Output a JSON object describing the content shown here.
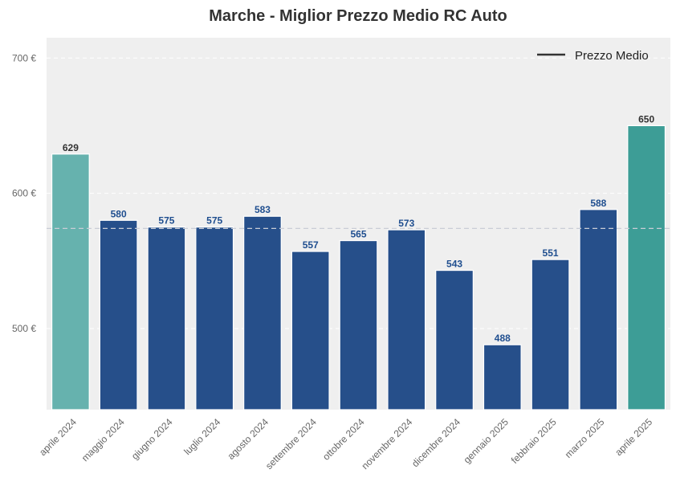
{
  "chart_data": {
    "type": "bar",
    "title": "Marche - Miglior Prezzo Medio RC Auto",
    "xlabel": "",
    "ylabel": "",
    "categories": [
      "aprile 2024",
      "maggio 2024",
      "giugno 2024",
      "luglio 2024",
      "agosto 2024",
      "settembre 2024",
      "ottobre 2024",
      "novembre 2024",
      "dicembre 2024",
      "gennaio 2025",
      "febbraio 2025",
      "marzo 2025",
      "aprile 2025"
    ],
    "values": [
      629,
      580,
      575,
      575,
      583,
      557,
      565,
      573,
      543,
      488,
      551,
      588,
      650
    ],
    "value_labels": [
      "629",
      "580",
      "575",
      "575",
      "583",
      "557",
      "565",
      "573",
      "543",
      "488",
      "551",
      "588",
      "650"
    ],
    "bar_colors": [
      "#66b2ae",
      "#264f8a",
      "#264f8a",
      "#264f8a",
      "#264f8a",
      "#264f8a",
      "#264f8a",
      "#264f8a",
      "#264f8a",
      "#264f8a",
      "#264f8a",
      "#264f8a",
      "#3d9d96"
    ],
    "label_colors": [
      "#333333",
      "#1f4e8f",
      "#1f4e8f",
      "#1f4e8f",
      "#1f4e8f",
      "#1f4e8f",
      "#1f4e8f",
      "#1f4e8f",
      "#1f4e8f",
      "#1f4e8f",
      "#1f4e8f",
      "#1f4e8f",
      "#333333"
    ],
    "ylim": [
      440,
      715
    ],
    "yticks": [
      500,
      600,
      700
    ],
    "ytick_labels": [
      "500 €",
      "600 €",
      "700 €"
    ],
    "average_line": 574,
    "average_line_color": "#c9cdd6",
    "legend": {
      "label": "Prezzo Medio",
      "placement": "top-right",
      "line_color": "#333333"
    },
    "grid": true,
    "plot_background": "#efefef"
  }
}
